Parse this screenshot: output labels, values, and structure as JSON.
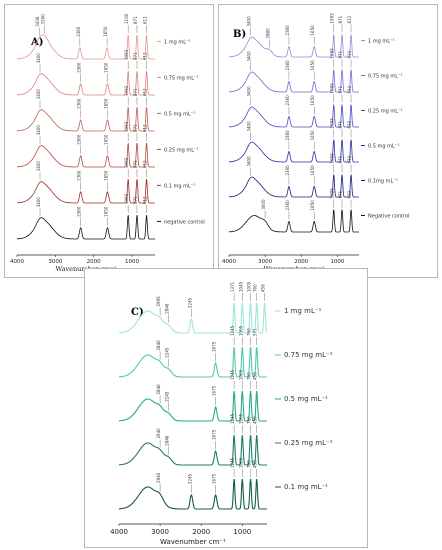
{
  "chart_data": [
    {
      "panel": "A)",
      "type": "line",
      "x_range": [
        4000,
        400
      ],
      "x_ticks": [
        "4000",
        "3000",
        "2000",
        "1000"
      ],
      "xlabel": "Wavenumber cm⁻¹",
      "series": [
        {
          "name": "1 mg mL⁻¹",
          "color": "#e69590",
          "peaks": [
            3420,
            3280,
            2360,
            1650,
            1100,
            870,
            620
          ],
          "peak_labels": [
            "3436",
            "3290",
            "2360",
            "1650",
            "1100",
            "871",
            "612"
          ]
        },
        {
          "name": "0.75 mg mL⁻¹",
          "color": "#dd7f79",
          "peaks": [
            3400,
            2340,
            1640,
            1100,
            870,
            620
          ],
          "peak_labels": [
            "3400",
            "2360",
            "1650",
            "1093",
            "871",
            "612"
          ]
        },
        {
          "name": "0.5 mg mL⁻¹",
          "color": "#c0604e",
          "peaks": [
            3400,
            2340,
            1640,
            1100,
            870,
            620
          ],
          "peak_labels": [
            "3400",
            "2360",
            "1650",
            "1093",
            "871",
            "612"
          ]
        },
        {
          "name": "0.25 mg mL⁻¹",
          "color": "#b84438",
          "peaks": [
            3400,
            2340,
            1640,
            1100,
            870,
            620
          ],
          "peak_labels": [
            "3400",
            "2360",
            "1650",
            "1093",
            "871",
            "612"
          ]
        },
        {
          "name": "0.1 mg mL⁻¹",
          "color": "#9c2a22",
          "peaks": [
            3400,
            2340,
            1640,
            1100,
            870,
            620
          ],
          "peak_labels": [
            "3400",
            "2360",
            "1650",
            "1093",
            "871",
            "612"
          ]
        },
        {
          "name": "negative control",
          "color": "#111111",
          "peaks": [
            3400,
            2340,
            1640,
            1100,
            870,
            620
          ],
          "peak_labels": [
            "3400",
            "2360",
            "1650",
            "1093",
            "871",
            "612"
          ]
        }
      ]
    },
    {
      "panel": "B)",
      "type": "line",
      "x_range": [
        4000,
        400
      ],
      "x_ticks": [
        "4000",
        "3000",
        "2000",
        "1000"
      ],
      "xlabel": "Wavenumber cm⁻¹",
      "series": [
        {
          "name": "1 mg mL⁻¹",
          "color": "#8b8bde",
          "peaks": [
            3400,
            2880,
            2340,
            1640,
            1100,
            870,
            620
          ],
          "peak_labels": [
            "3400",
            "2880",
            "2360",
            "1650",
            "1093",
            "871",
            "612"
          ]
        },
        {
          "name": "0.75 mg mL⁻¹",
          "color": "#6b6bd6",
          "peaks": [
            3400,
            2340,
            1640,
            1100,
            870,
            620
          ],
          "peak_labels": [
            "3400",
            "2360",
            "1650",
            "1093",
            "871",
            "612"
          ]
        },
        {
          "name": "0.25 mg mL⁻¹",
          "color": "#4848c4",
          "peaks": [
            3400,
            2340,
            1640,
            1100,
            870,
            620
          ],
          "peak_labels": [
            "3400",
            "2360",
            "1650",
            "1093",
            "871",
            "612"
          ]
        },
        {
          "name": "0.5 mg mL⁻¹",
          "color": "#2a2aa8",
          "peaks": [
            3400,
            2340,
            1640,
            1100,
            870,
            620
          ],
          "peak_labels": [
            "3400",
            "2360",
            "1650",
            "1093",
            "871",
            "612"
          ]
        },
        {
          "name": "0.1mg mL⁻¹",
          "color": "#1a1a86",
          "peaks": [
            3400,
            2340,
            1640,
            1100,
            870,
            620
          ],
          "peak_labels": [
            "3400",
            "2360",
            "1650",
            "1093",
            "871",
            "612"
          ]
        },
        {
          "name": "Negative control",
          "color": "#111111",
          "peaks": [
            3000,
            2340,
            1640,
            1100,
            870,
            620
          ],
          "peak_labels": [
            "3000",
            "2360",
            "1650",
            "1093",
            "871",
            "612"
          ]
        }
      ]
    },
    {
      "panel": "C)",
      "type": "line",
      "x_range": [
        4000,
        400
      ],
      "x_ticks": [
        "4000",
        "3000",
        "2000",
        "1000"
      ],
      "xlabel": "Wavenumber cm⁻¹",
      "series": [
        {
          "name": "1 mg mL⁻¹",
          "color": "#9fe6d9",
          "peaks": [
            3000,
            2800,
            2240,
            1200,
            1000,
            800,
            650,
            459
          ],
          "peak_labels": [
            "2995",
            "2846",
            "2245",
            "1371",
            "1045",
            "1005",
            "760",
            "459"
          ]
        },
        {
          "name": "0.75 mg mL⁻¹",
          "color": "#55c6b2",
          "peaks": [
            3000,
            2800,
            1650,
            1200,
            1000,
            800,
            650
          ],
          "peak_labels": [
            "2846",
            "2245",
            "1675",
            "1245",
            "1005",
            "760",
            "571"
          ]
        },
        {
          "name": "0.5 mg mL⁻¹",
          "color": "#2aa88e",
          "peaks": [
            3000,
            2800,
            1650,
            1200,
            1000,
            800,
            650
          ],
          "peak_labels": [
            "2846",
            "2245",
            "1675",
            "1245",
            "1005",
            "760",
            "459"
          ]
        },
        {
          "name": "0.25 mg mL⁻¹",
          "color": "#1f7d68",
          "peaks": [
            3000,
            2800,
            1650,
            1200,
            1000,
            800,
            650
          ],
          "peak_labels": [
            "2940",
            "2846",
            "1675",
            "1245",
            "1005",
            "760",
            "459"
          ]
        },
        {
          "name": "0.1 mg mL⁻¹",
          "color": "#175b4a",
          "peaks": [
            3000,
            2240,
            1650,
            1200,
            1000,
            800,
            650
          ],
          "peak_labels": [
            "2940",
            "2245",
            "1675",
            "1245",
            "1005",
            "760",
            "459"
          ]
        }
      ]
    }
  ]
}
